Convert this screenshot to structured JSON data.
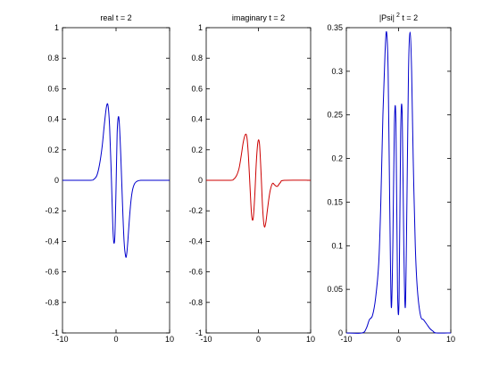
{
  "figure": {
    "background": "#ffffff",
    "axes_color": "#000000"
  },
  "chart_data": [
    {
      "type": "line",
      "title": "real t = 2",
      "xlabel": "",
      "ylabel": "",
      "xlim": [
        -10,
        10
      ],
      "ylim": [
        -1,
        1
      ],
      "xticks": [
        -10,
        0,
        10
      ],
      "yticks": [
        -1,
        -0.8,
        -0.6,
        -0.4,
        -0.2,
        0,
        0.2,
        0.4,
        0.6,
        0.8,
        1
      ],
      "ytick_labels": [
        "-1",
        "-0.8",
        "-0.6",
        "-0.4",
        "-0.2",
        "0",
        "0.2",
        "0.4",
        "0.6",
        "0.8",
        "1"
      ],
      "grid": false,
      "series": [
        {
          "color": "#0000cc",
          "x": [
            -10,
            -5,
            -4.2,
            -3.6,
            -3.1,
            -2.6,
            -2.2,
            -1.8,
            -1.5,
            -1.2,
            -0.9,
            -0.6,
            -0.4,
            -0.2,
            0,
            0.2,
            0.4,
            0.6,
            0.9,
            1.2,
            1.5,
            1.8,
            2.0,
            2.2,
            2.5,
            2.8,
            3.1,
            3.5,
            4.0,
            4.6,
            5.5,
            10
          ],
          "y": [
            0,
            0,
            0.005,
            0.03,
            0.1,
            0.22,
            0.36,
            0.48,
            0.49,
            0.35,
            0.05,
            -0.3,
            -0.41,
            -0.35,
            -0.05,
            0.3,
            0.41,
            0.38,
            0.15,
            -0.15,
            -0.4,
            -0.5,
            -0.48,
            -0.4,
            -0.25,
            -0.13,
            -0.06,
            -0.02,
            -0.005,
            0,
            0,
            0
          ]
        }
      ]
    },
    {
      "type": "line",
      "title": "imaginary t = 2",
      "xlabel": "",
      "ylabel": "",
      "xlim": [
        -10,
        10
      ],
      "ylim": [
        -1,
        1
      ],
      "xticks": [
        -10,
        0,
        10
      ],
      "yticks": [
        -1,
        -0.8,
        -0.6,
        -0.4,
        -0.2,
        0,
        0.2,
        0.4,
        0.6,
        0.8,
        1
      ],
      "grid": false,
      "series": [
        {
          "color": "#cc0000",
          "x": [
            -10,
            -5.5,
            -4.8,
            -4.2,
            -3.7,
            -3.3,
            -2.9,
            -2.5,
            -2.2,
            -1.9,
            -1.6,
            -1.3,
            -1.0,
            -0.7,
            -0.4,
            -0.1,
            0.2,
            0.5,
            0.8,
            1.1,
            1.4,
            1.7,
            2.0,
            2.3,
            2.7,
            3.1,
            3.6,
            4.2,
            5.0,
            10
          ],
          "y": [
            0,
            0,
            0.005,
            0.03,
            0.08,
            0.16,
            0.25,
            0.3,
            0.28,
            0.15,
            -0.05,
            -0.23,
            -0.25,
            -0.1,
            0.12,
            0.25,
            0.24,
            0.05,
            -0.18,
            -0.3,
            -0.28,
            -0.2,
            -0.12,
            -0.06,
            -0.02,
            -0.03,
            -0.04,
            -0.015,
            0,
            0
          ]
        }
      ]
    },
    {
      "type": "line",
      "title": "|Psi|",
      "title_superscript": "2",
      "title_suffix": " t = 2",
      "xlabel": "",
      "ylabel": "",
      "xlim": [
        -10,
        10
      ],
      "ylim": [
        0,
        0.35
      ],
      "xticks": [
        -10,
        0,
        10
      ],
      "yticks": [
        0,
        0.05,
        0.1,
        0.15,
        0.2,
        0.25,
        0.3,
        0.35
      ],
      "ytick_labels": [
        "0",
        "0.05",
        "0.1",
        "0.15",
        "0.2",
        "0.25",
        "0.3",
        "0.35"
      ],
      "grid": false,
      "series": [
        {
          "color": "#0000cc",
          "x": [
            -10,
            -7,
            -6.2,
            -5.6,
            -5.0,
            -4.4,
            -3.8,
            -3.4,
            -3.0,
            -2.6,
            -2.3,
            -2.0,
            -1.7,
            -1.4,
            -1.1,
            -0.8,
            -0.5,
            -0.2,
            0.1,
            0.4,
            0.7,
            1.0,
            1.3,
            1.6,
            1.9,
            2.2,
            2.5,
            2.8,
            3.2,
            3.6,
            4.2,
            4.8,
            5.4,
            6.0,
            6.6,
            7.2,
            10
          ],
          "y": [
            0,
            0,
            0.005,
            0.015,
            0.02,
            0.04,
            0.08,
            0.15,
            0.25,
            0.32,
            0.345,
            0.3,
            0.15,
            0.03,
            0.1,
            0.24,
            0.24,
            0.05,
            0.04,
            0.23,
            0.25,
            0.1,
            0.03,
            0.15,
            0.3,
            0.345,
            0.3,
            0.2,
            0.1,
            0.05,
            0.02,
            0.015,
            0.01,
            0.005,
            0.002,
            0,
            0
          ]
        }
      ]
    }
  ]
}
